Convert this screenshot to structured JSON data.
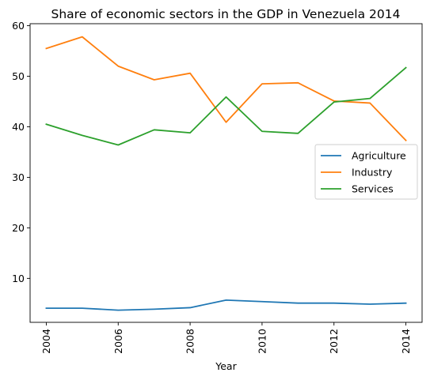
{
  "chart_data": {
    "type": "line",
    "title": "Share of economic sectors in the GDP in Venezuela 2014",
    "xlabel": "Year",
    "ylabel": "",
    "x": [
      2004,
      2005,
      2006,
      2007,
      2008,
      2009,
      2010,
      2011,
      2012,
      2013,
      2014
    ],
    "xlim": [
      2003.55,
      2014.45
    ],
    "ylim": [
      1.3,
      60.4
    ],
    "xticks": [
      2004,
      2006,
      2008,
      2010,
      2012,
      2014
    ],
    "yticks": [
      10,
      20,
      30,
      40,
      50,
      60
    ],
    "grid": false,
    "legend_position": "center-right",
    "series": [
      {
        "name": "Agriculture",
        "color": "#1f77b4",
        "values": [
          4.1,
          4.1,
          3.7,
          3.9,
          4.2,
          5.7,
          5.4,
          5.1,
          5.1,
          4.9,
          5.1
        ]
      },
      {
        "name": "Industry",
        "color": "#ff7f0e",
        "values": [
          55.5,
          57.8,
          52.0,
          49.3,
          50.6,
          40.9,
          48.5,
          48.7,
          45.1,
          44.7,
          37.3
        ]
      },
      {
        "name": "Services",
        "color": "#2ca02c",
        "values": [
          40.5,
          38.3,
          36.4,
          39.4,
          38.8,
          45.9,
          39.1,
          38.7,
          44.9,
          45.6,
          51.7
        ]
      }
    ]
  }
}
